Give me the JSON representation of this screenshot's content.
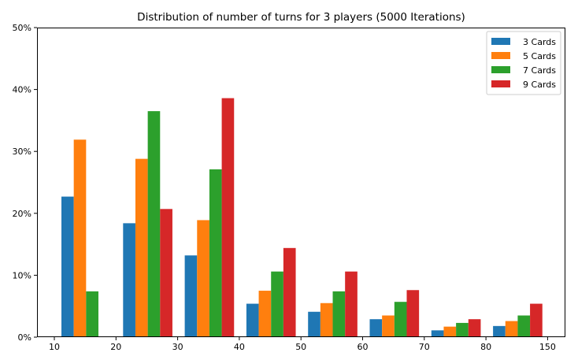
{
  "chart_data": {
    "type": "bar",
    "title": "Distribution of number of turns for 3 players (5000 Iterations)",
    "xlabel": "",
    "ylabel": "",
    "x_tick_labels": [
      "10",
      "20",
      "30",
      "40",
      "50",
      "60",
      "70",
      "80",
      "150"
    ],
    "y_tick_labels": [
      "0%",
      "10%",
      "20%",
      "30%",
      "40%",
      "50%"
    ],
    "ylim": [
      0,
      50
    ],
    "legend_position": "top-right",
    "series": [
      {
        "name": "3 Cards",
        "color": "#1f77b4",
        "values": [
          22.7,
          18.4,
          13.2,
          5.4,
          4.1,
          2.9,
          1.1,
          1.8
        ]
      },
      {
        "name": "5 Cards",
        "color": "#ff7f0e",
        "values": [
          31.9,
          28.8,
          18.9,
          7.5,
          5.5,
          3.5,
          1.7,
          2.6
        ]
      },
      {
        "name": "7 Cards",
        "color": "#2ca02c",
        "values": [
          7.4,
          36.5,
          27.1,
          10.6,
          7.4,
          5.7,
          2.3,
          3.5
        ]
      },
      {
        "name": "9 Cards",
        "color": "#d62728",
        "values": [
          0.0,
          20.7,
          38.6,
          14.4,
          10.6,
          7.6,
          2.9,
          5.4
        ]
      }
    ]
  }
}
